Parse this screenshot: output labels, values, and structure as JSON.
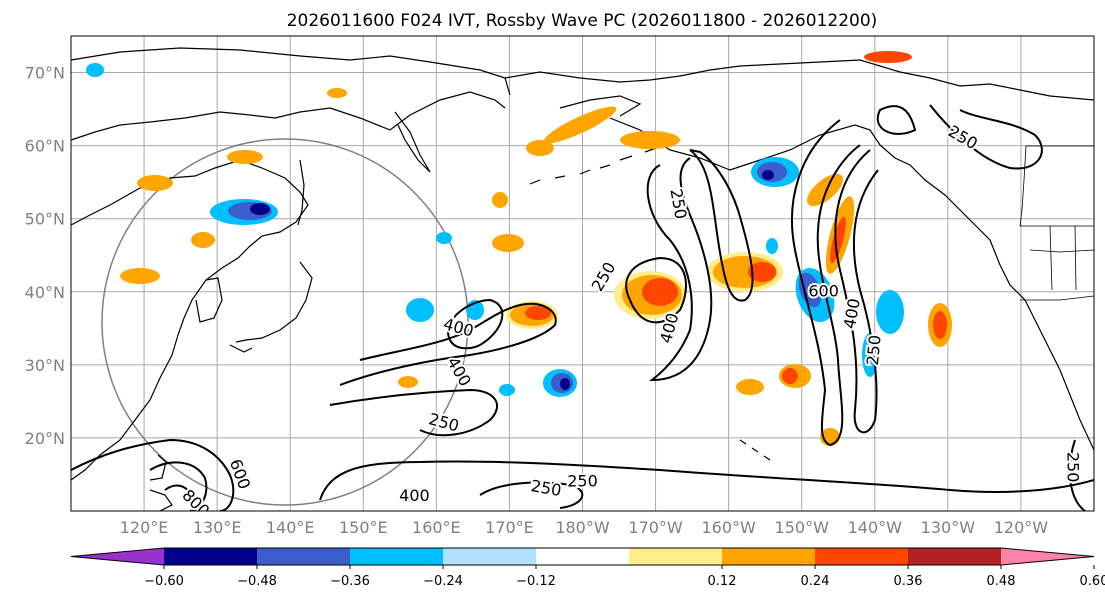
{
  "title": "2026011600 F024 IVT, Rossby Wave PC (2026011800 - 2026012200)",
  "map": {
    "lon_range": [
      110,
      250
    ],
    "lat_range": [
      10,
      75
    ],
    "lat_ticks": [
      {
        "lat": 70,
        "label": "70°N"
      },
      {
        "lat": 60,
        "label": "60°N"
      },
      {
        "lat": 50,
        "label": "50°N"
      },
      {
        "lat": 40,
        "label": "40°N"
      },
      {
        "lat": 30,
        "label": "30°N"
      },
      {
        "lat": 20,
        "label": "20°N"
      }
    ],
    "lon_ticks": [
      {
        "lon": 120,
        "label": "120°E"
      },
      {
        "lon": 130,
        "label": "130°E"
      },
      {
        "lon": 140,
        "label": "140°E"
      },
      {
        "lon": 150,
        "label": "150°E"
      },
      {
        "lon": 160,
        "label": "160°E"
      },
      {
        "lon": 170,
        "label": "170°E"
      },
      {
        "lon": 180,
        "label": "180°W"
      },
      {
        "lon": 190,
        "label": "170°W"
      },
      {
        "lon": 200,
        "label": "160°W"
      },
      {
        "lon": 210,
        "label": "150°W"
      },
      {
        "lon": 220,
        "label": "140°W"
      },
      {
        "lon": 230,
        "label": "130°W"
      },
      {
        "lon": 240,
        "label": "120°W"
      }
    ],
    "grid": true
  },
  "colorbar": {
    "colors": [
      "#9932cc",
      "#00008b",
      "#3a5fcd",
      "#00bfff",
      "#b0e2ff",
      "#ffffff",
      "#ffec8b",
      "#ffa500",
      "#ff4500",
      "#b22222",
      "#ff82ab"
    ],
    "ticks": [
      {
        "value": -0.6,
        "label": "−0.60"
      },
      {
        "value": -0.48,
        "label": "−0.48"
      },
      {
        "value": -0.36,
        "label": "−0.36"
      },
      {
        "value": -0.24,
        "label": "−0.24"
      },
      {
        "value": -0.12,
        "label": "−0.12"
      },
      {
        "value": 0.12,
        "label": "0.12"
      },
      {
        "value": 0.24,
        "label": "0.24"
      },
      {
        "value": 0.36,
        "label": "0.36"
      },
      {
        "value": 0.48,
        "label": "0.48"
      },
      {
        "value": 0.6,
        "label": "0.60"
      }
    ]
  },
  "contour_labels": [
    {
      "text": "250",
      "lon": 232,
      "lat": 61,
      "rot": 30
    },
    {
      "text": "250",
      "lon": 193,
      "lat": 52,
      "rot": 80
    },
    {
      "text": "250",
      "lon": 183,
      "lat": 42,
      "rot": -60
    },
    {
      "text": "400",
      "lon": 192,
      "lat": 35,
      "rot": -75
    },
    {
      "text": "400",
      "lon": 163,
      "lat": 35,
      "rot": 15
    },
    {
      "text": "400",
      "lon": 163,
      "lat": 29,
      "rot": 60
    },
    {
      "text": "250",
      "lon": 161,
      "lat": 22,
      "rot": 15
    },
    {
      "text": "250",
      "lon": 175,
      "lat": 13,
      "rot": 10
    },
    {
      "text": "250",
      "lon": 180,
      "lat": 14,
      "rot": 0
    },
    {
      "text": "400",
      "lon": 157,
      "lat": 12,
      "rot": 0
    },
    {
      "text": "600",
      "lon": 133,
      "lat": 15,
      "rot": 70
    },
    {
      "text": "800",
      "lon": 127,
      "lat": 11,
      "rot": 45
    },
    {
      "text": "600",
      "lon": 213,
      "lat": 40,
      "rot": 0
    },
    {
      "text": "400",
      "lon": 217,
      "lat": 37,
      "rot": -80
    },
    {
      "text": "250",
      "lon": 220,
      "lat": 32,
      "rot": -85
    },
    {
      "text": "250",
      "lon": 247,
      "lat": 16,
      "rot": 90
    }
  ]
}
